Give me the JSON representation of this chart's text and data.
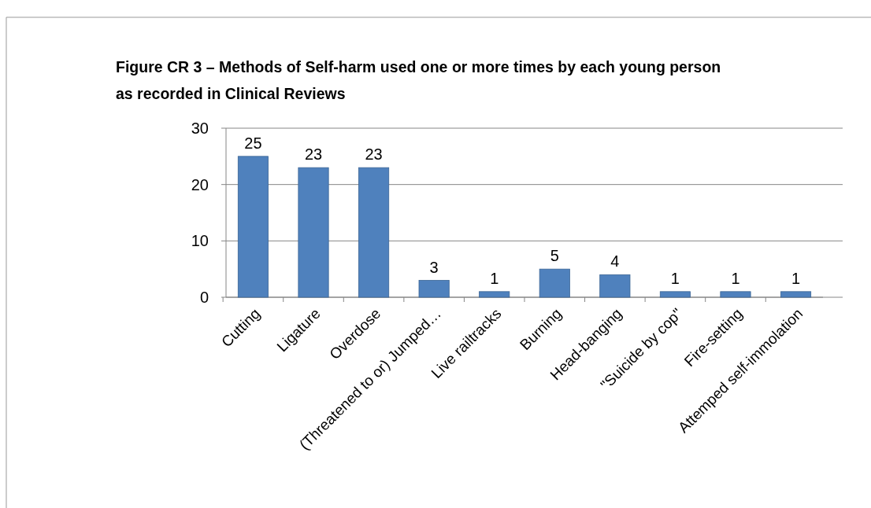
{
  "chart_data": {
    "type": "bar",
    "title": "Figure CR 3 – Methods of Self-harm used one or more times by each young person as recorded in Clinical Reviews",
    "categories": [
      "Cutting",
      "Ligature",
      "Overdose",
      "(Threatened to or) Jumped…",
      "Live railtracks",
      "Burning",
      "Head-banging",
      "\"Suicide by cop\"",
      "Fire-setting",
      "Attemped self-immolation"
    ],
    "values": [
      25,
      23,
      23,
      3,
      1,
      5,
      4,
      1,
      1,
      1
    ],
    "color": "#4f81bd",
    "ylim": [
      0,
      30
    ],
    "yticks": [
      0,
      10,
      20,
      30
    ],
    "grid": "y",
    "data_labels": true
  }
}
